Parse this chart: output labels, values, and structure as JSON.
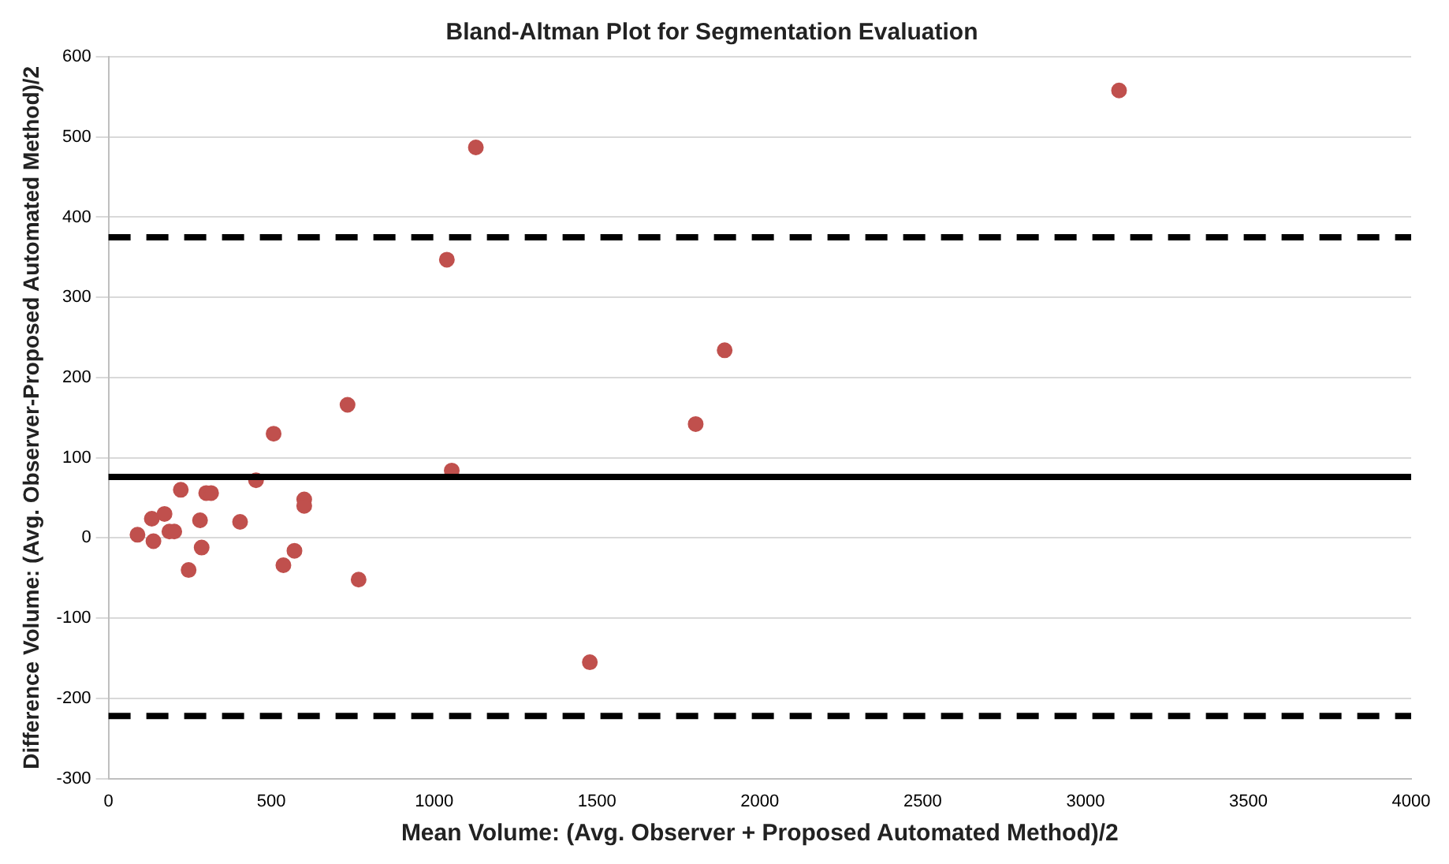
{
  "chart_data": {
    "type": "scatter",
    "title": "Bland-Altman Plot for Segmentation Evaluation",
    "xlabel": "Mean Volume: (Avg. Observer + Proposed Automated Method)/2",
    "ylabel": "Difference Volume: (Avg. Observer-Proposed Automated Method)/2",
    "x": [
      89,
      133,
      138,
      172,
      187,
      202,
      222,
      246,
      281,
      286,
      300,
      315,
      404,
      453,
      507,
      537,
      571,
      601,
      601,
      734,
      768,
      1039,
      1054,
      1128,
      1478,
      1803,
      1892,
      3103
    ],
    "series": [
      {
        "color": "#c0504d",
        "values": [
          4,
          24,
          -4,
          30,
          8,
          8,
          60,
          -40,
          22,
          -12,
          56,
          56,
          20,
          72,
          130,
          -34,
          -16,
          48,
          40,
          166,
          -52,
          347,
          84,
          487,
          -155,
          142,
          234,
          558
        ]
      }
    ],
    "xlim": [
      0,
      4000
    ],
    "xticks": [
      0,
      500,
      1000,
      1500,
      2000,
      2500,
      3000,
      3500,
      4000
    ],
    "ylim": [
      -300,
      600
    ],
    "yticks": [
      -300,
      -200,
      -100,
      0,
      100,
      200,
      300,
      400,
      500,
      600
    ],
    "ref_lines": [
      {
        "axis": "y",
        "value": 76,
        "color": "#000000",
        "line_style": "solid"
      },
      {
        "axis": "y",
        "value": 375,
        "color": "#000000",
        "line_style": "dashed"
      },
      {
        "axis": "y",
        "value": -222,
        "color": "#000000",
        "line_style": "dashed"
      }
    ],
    "grid": "y",
    "legend": false,
    "marker": "circle"
  }
}
